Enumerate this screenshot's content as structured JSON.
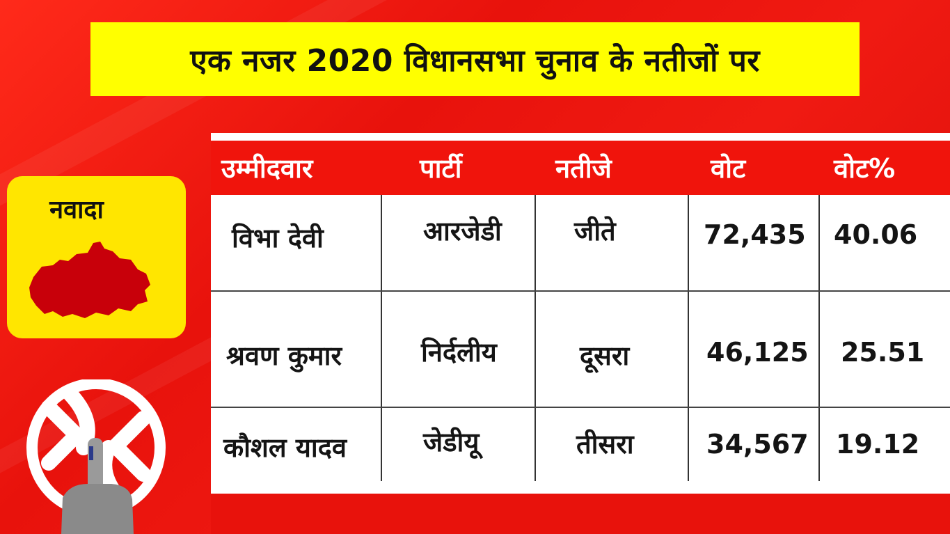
{
  "title": "एक नजर 2020 विधानसभा चुनाव के नतीजों पर",
  "district": {
    "name": "नवादा",
    "map_icon": "district-map-icon",
    "map_color": "#c8000a"
  },
  "symbol_icon": "election-swastik-finger-icon",
  "colors": {
    "background": "#e8120c",
    "title_bar": "#ffff00",
    "district_card": "#ffe600",
    "table_header": "#f0140c"
  },
  "table": {
    "headers": [
      "उम्मीदवार",
      "पार्टी",
      "नतीजे",
      "वोट",
      "वोट%"
    ],
    "rows": [
      [
        "विभा देवी",
        "आरजेडी",
        "जीते",
        "72,435",
        "40.06"
      ],
      [
        "श्रवण कुमार",
        "निर्दलीय",
        "दूसरा",
        "46,125",
        "25.51"
      ],
      [
        "कौशल यादव",
        "जेडीयू",
        "तीसरा",
        "34,567",
        "19.12"
      ]
    ]
  }
}
